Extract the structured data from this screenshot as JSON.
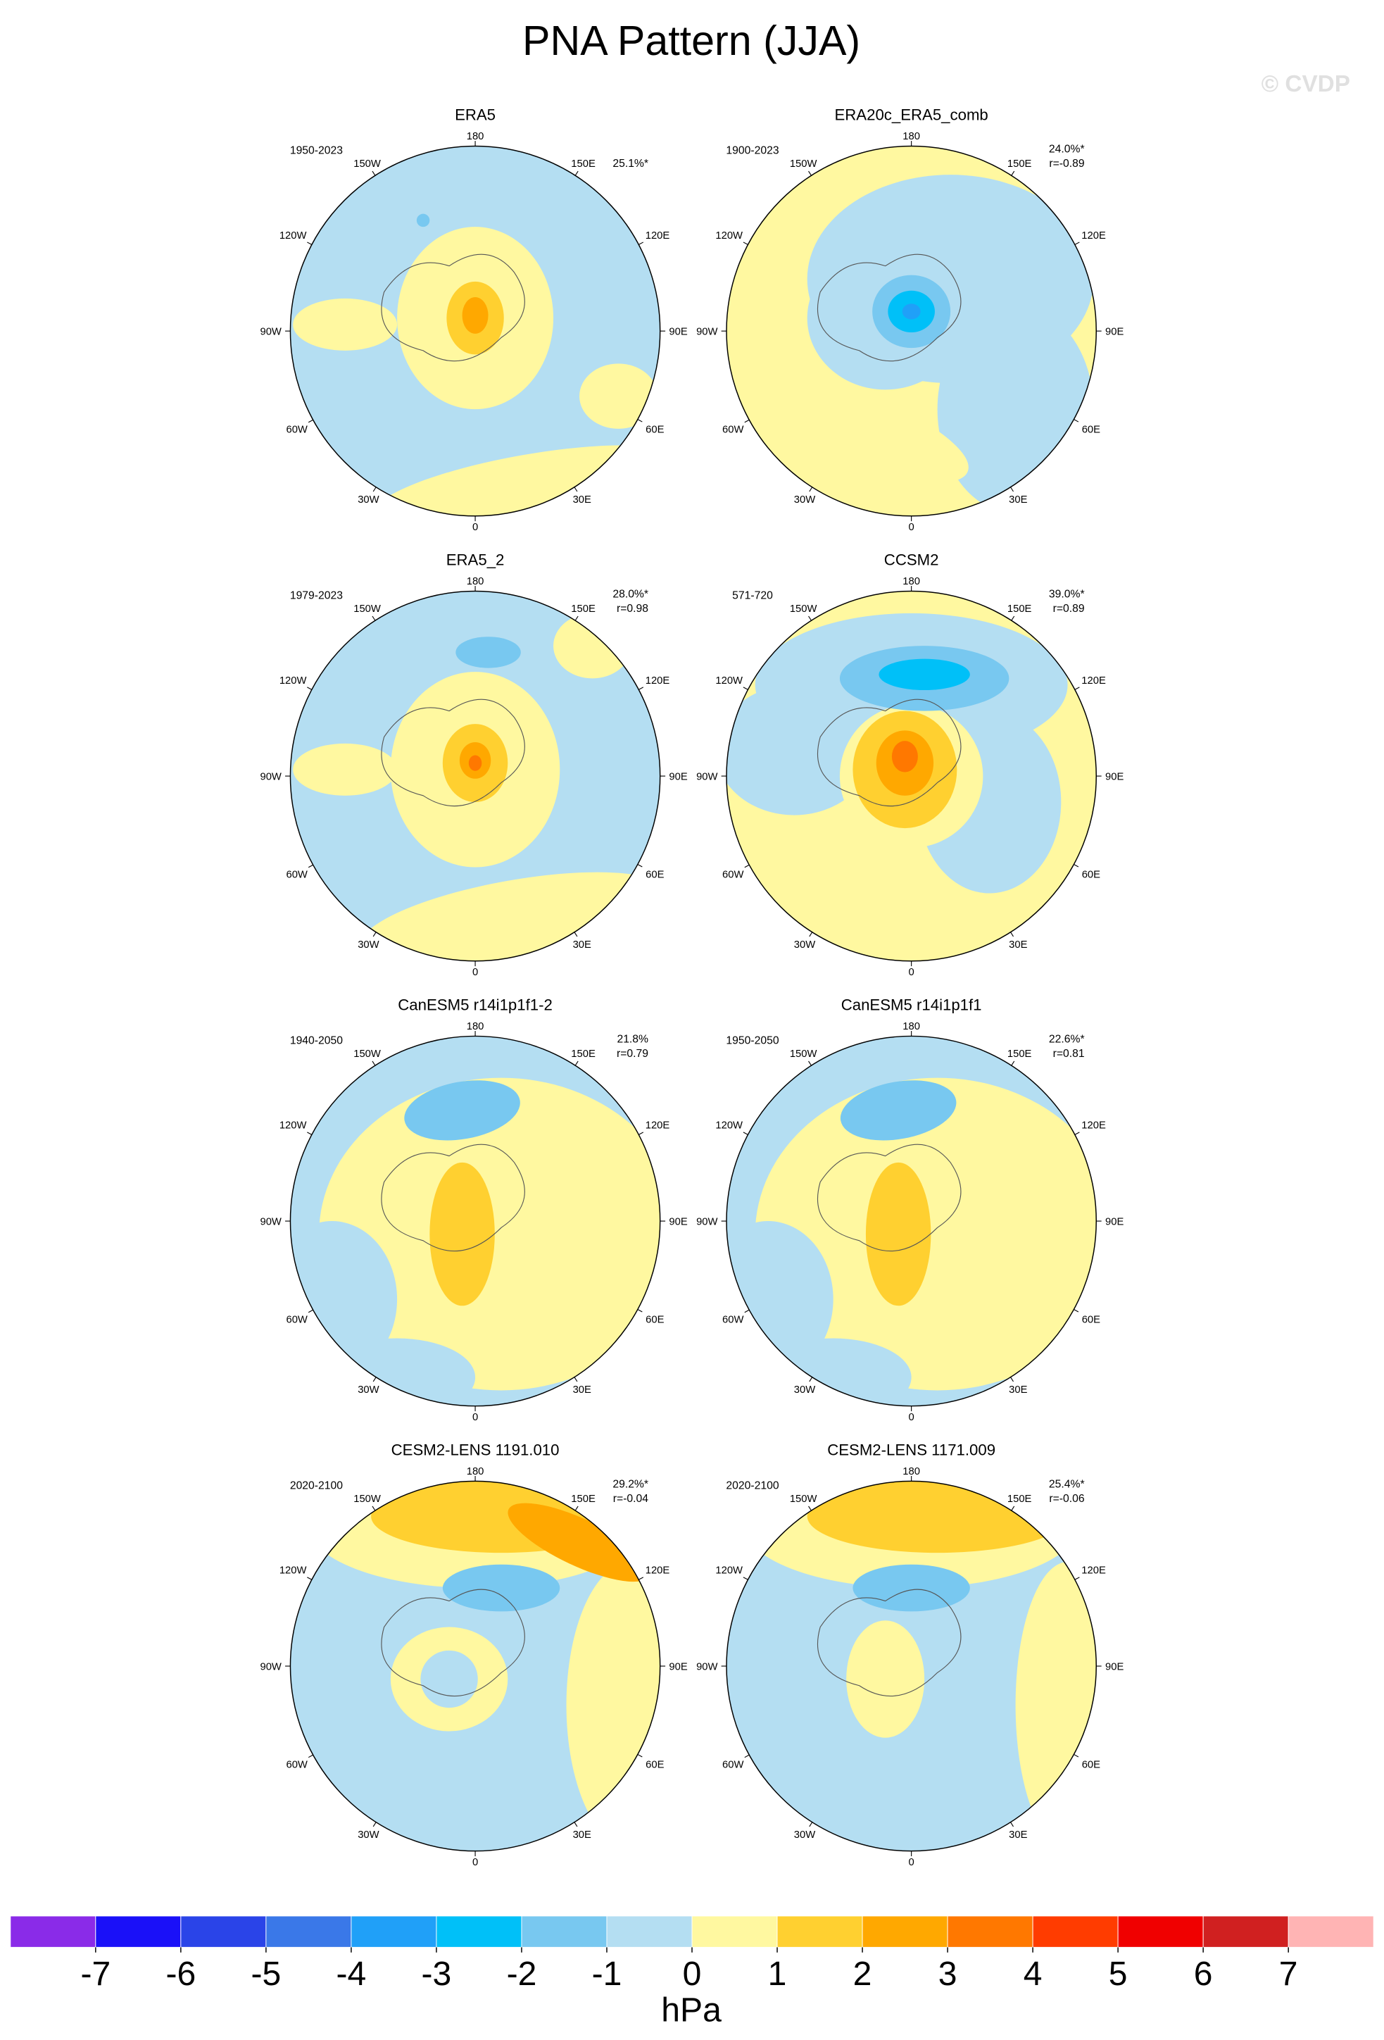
{
  "title": "PNA Pattern (JJA)",
  "watermark": "© CVDP",
  "lon_labels": [
    "180",
    "150E",
    "120E",
    "90E",
    "60E",
    "30E",
    "0",
    "30W",
    "60W",
    "90W",
    "120W",
    "150W"
  ],
  "panels": [
    {
      "title": "ERA5",
      "period": "1950-2023",
      "pct": "25.1%*"
    },
    {
      "title": "ERA20c_ERA5_comb",
      "period": "1900-2023",
      "pct": "24.0%*",
      "r": "r=-0.89"
    },
    {
      "title": "ERA5_2",
      "period": "1979-2023",
      "pct": "28.0%*",
      "r": "r=0.98"
    },
    {
      "title": "CCSM2",
      "period": "571-720",
      "pct": "39.0%*",
      "r": "r=0.89"
    },
    {
      "title": "CanESM5 r14i1p1f1-2",
      "period": "1940-2050",
      "pct": "21.8%",
      "r": "r=0.79"
    },
    {
      "title": "CanESM5 r14i1p1f1",
      "period": "1950-2050",
      "pct": "22.6%*",
      "r": "r=0.81"
    },
    {
      "title": "CESM2-LENS 1191.010",
      "period": "2020-2100",
      "pct": "29.2%*",
      "r": "r=-0.04"
    },
    {
      "title": "CESM2-LENS 1171.009",
      "period": "2020-2100",
      "pct": "25.4%*",
      "r": "r=-0.06"
    }
  ],
  "colorbar": {
    "colors": [
      "#8a2be8",
      "#1a10f8",
      "#2a44e8",
      "#3a78e8",
      "#20a0f8",
      "#00c0f8",
      "#78c8f0",
      "#b4def2",
      "#fff8a0",
      "#ffd030",
      "#ffa800",
      "#ff7800",
      "#ff3c00",
      "#f00000",
      "#d02020",
      "#ffb4b4"
    ],
    "ticks": [
      -7,
      -6,
      -5,
      -4,
      -3,
      -2,
      -1,
      0,
      1,
      2,
      3,
      4,
      5,
      6,
      7
    ],
    "units": "hPa"
  }
}
